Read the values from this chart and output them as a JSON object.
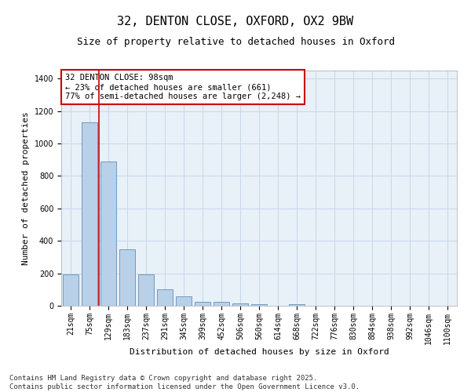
{
  "title_line1": "32, DENTON CLOSE, OXFORD, OX2 9BW",
  "title_line2": "Size of property relative to detached houses in Oxford",
  "xlabel": "Distribution of detached houses by size in Oxford",
  "ylabel": "Number of detached properties",
  "categories": [
    "21sqm",
    "75sqm",
    "129sqm",
    "183sqm",
    "237sqm",
    "291sqm",
    "345sqm",
    "399sqm",
    "452sqm",
    "506sqm",
    "560sqm",
    "614sqm",
    "668sqm",
    "722sqm",
    "776sqm",
    "830sqm",
    "884sqm",
    "938sqm",
    "992sqm",
    "1046sqm",
    "1100sqm"
  ],
  "values": [
    195,
    1130,
    890,
    350,
    195,
    100,
    60,
    25,
    22,
    15,
    8,
    0,
    10,
    0,
    0,
    0,
    0,
    0,
    0,
    0,
    0
  ],
  "bar_color": "#b8d0e8",
  "bar_edge_color": "#6090b8",
  "grid_color": "#c8d8ea",
  "bg_color": "#e8f0f8",
  "vline_color": "#cc0000",
  "vline_x": 1.5,
  "annotation_text": "32 DENTON CLOSE: 98sqm\n← 23% of detached houses are smaller (661)\n77% of semi-detached houses are larger (2,248) →",
  "annotation_box_color": "#cc0000",
  "ylim": [
    0,
    1450
  ],
  "yticks": [
    0,
    200,
    400,
    600,
    800,
    1000,
    1200,
    1400
  ],
  "footer_line1": "Contains HM Land Registry data © Crown copyright and database right 2025.",
  "footer_line2": "Contains public sector information licensed under the Open Government Licence v3.0.",
  "title_fontsize": 11,
  "subtitle_fontsize": 9,
  "axis_label_fontsize": 8,
  "tick_fontsize": 7,
  "annotation_fontsize": 7.5,
  "footer_fontsize": 6.5
}
